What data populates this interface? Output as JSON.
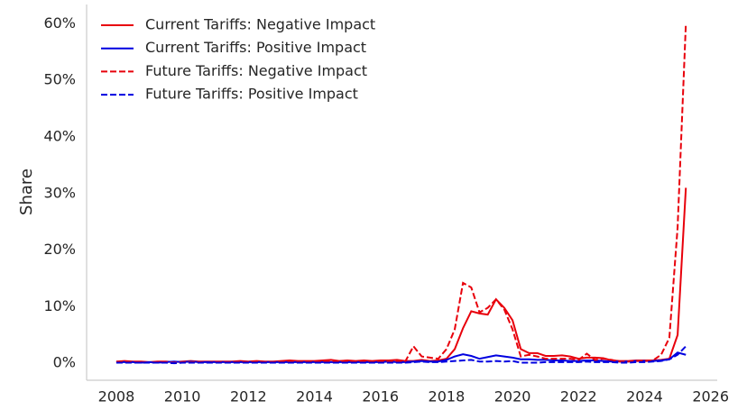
{
  "chart_data": {
    "type": "line",
    "ylabel": "Share",
    "x": [
      2008,
      2008.25,
      2008.5,
      2008.75,
      2009,
      2009.25,
      2009.5,
      2009.75,
      2010,
      2010.25,
      2010.5,
      2010.75,
      2011,
      2011.25,
      2011.5,
      2011.75,
      2012,
      2012.25,
      2012.5,
      2012.75,
      2013,
      2013.25,
      2013.5,
      2013.75,
      2014,
      2014.25,
      2014.5,
      2014.75,
      2015,
      2015.25,
      2015.5,
      2015.75,
      2016,
      2016.25,
      2016.5,
      2016.75,
      2017,
      2017.25,
      2017.5,
      2017.75,
      2018,
      2018.25,
      2018.5,
      2018.75,
      2019,
      2019.25,
      2019.5,
      2019.75,
      2020,
      2020.25,
      2020.5,
      2020.75,
      2021,
      2021.25,
      2021.5,
      2021.75,
      2022,
      2022.25,
      2022.5,
      2022.75,
      2023,
      2023.25,
      2023.5,
      2023.75,
      2024,
      2024.25,
      2024.5,
      2024.75,
      2025,
      2025.25
    ],
    "series": [
      {
        "name": "Current Tariffs: Negative Impact",
        "color": "#e8000b",
        "linestyle": "solid",
        "values": [
          0.3,
          0.4,
          0.3,
          0.3,
          0.2,
          0.3,
          0.3,
          0.2,
          0.3,
          0.4,
          0.3,
          0.3,
          0.3,
          0.3,
          0.3,
          0.4,
          0.3,
          0.4,
          0.3,
          0.3,
          0.4,
          0.5,
          0.4,
          0.4,
          0.4,
          0.5,
          0.6,
          0.4,
          0.5,
          0.4,
          0.5,
          0.4,
          0.5,
          0.5,
          0.6,
          0.4,
          0.4,
          0.6,
          0.4,
          0.5,
          0.8,
          2.5,
          6.2,
          9.2,
          8.8,
          8.6,
          11.3,
          9.8,
          7.6,
          2.5,
          1.8,
          1.8,
          1.3,
          1.3,
          1.4,
          1.2,
          0.8,
          1.0,
          1.0,
          0.9,
          0.5,
          0.4,
          0.4,
          0.5,
          0.5,
          0.5,
          0.6,
          0.8,
          5.0,
          31.0
        ]
      },
      {
        "name": "Current Tariffs: Positive Impact",
        "color": "#0000e0",
        "linestyle": "solid",
        "values": [
          0.2,
          0.2,
          0.2,
          0.1,
          0.2,
          0.1,
          0.2,
          0.3,
          0.2,
          0.3,
          0.2,
          0.2,
          0.2,
          0.2,
          0.2,
          0.2,
          0.2,
          0.2,
          0.2,
          0.2,
          0.2,
          0.2,
          0.2,
          0.2,
          0.2,
          0.2,
          0.2,
          0.2,
          0.2,
          0.2,
          0.2,
          0.2,
          0.2,
          0.3,
          0.2,
          0.2,
          0.3,
          0.4,
          0.3,
          0.3,
          0.6,
          1.2,
          1.6,
          1.3,
          0.8,
          1.1,
          1.4,
          1.2,
          1.0,
          0.7,
          0.7,
          0.6,
          0.6,
          0.5,
          0.5,
          0.4,
          0.4,
          0.5,
          0.5,
          0.4,
          0.3,
          0.3,
          0.3,
          0.4,
          0.4,
          0.4,
          0.5,
          0.7,
          1.9,
          1.5
        ]
      },
      {
        "name": "Future Tariffs: Negative Impact",
        "color": "#e8000b",
        "linestyle": "dashed",
        "values": [
          0.2,
          0.3,
          0.2,
          0.2,
          0.1,
          0.2,
          0.2,
          0.1,
          0.2,
          0.2,
          0.2,
          0.1,
          0.2,
          0.2,
          0.2,
          0.2,
          0.2,
          0.3,
          0.2,
          0.2,
          0.3,
          0.3,
          0.2,
          0.3,
          0.3,
          0.3,
          0.4,
          0.3,
          0.3,
          0.3,
          0.4,
          0.3,
          0.3,
          0.3,
          0.4,
          0.3,
          3.0,
          1.2,
          1.0,
          0.8,
          2.5,
          6.0,
          14.2,
          13.4,
          9.0,
          9.8,
          11.3,
          9.5,
          6.0,
          1.2,
          1.5,
          1.2,
          0.8,
          0.8,
          0.8,
          0.8,
          0.6,
          1.7,
          0.6,
          0.8,
          0.6,
          0.3,
          0.3,
          0.4,
          0.4,
          0.5,
          1.5,
          4.5,
          24.0,
          60.0
        ]
      },
      {
        "name": "Future Tariffs: Positive Impact",
        "color": "#0000e0",
        "linestyle": "dashed",
        "values": [
          0.1,
          0.1,
          0.1,
          0.1,
          0.1,
          0.1,
          0.1,
          0.0,
          0.1,
          0.1,
          0.1,
          0.1,
          0.1,
          0.1,
          0.1,
          0.1,
          0.1,
          0.1,
          0.1,
          0.1,
          0.1,
          0.1,
          0.1,
          0.1,
          0.1,
          0.1,
          0.1,
          0.1,
          0.1,
          0.1,
          0.1,
          0.1,
          0.1,
          0.1,
          0.1,
          0.1,
          0.2,
          0.3,
          0.2,
          0.2,
          0.3,
          0.4,
          0.5,
          0.6,
          0.3,
          0.3,
          0.4,
          0.3,
          0.4,
          0.1,
          0.1,
          0.1,
          0.2,
          0.2,
          0.2,
          0.2,
          0.2,
          0.3,
          0.2,
          0.2,
          0.2,
          0.1,
          0.1,
          0.2,
          0.2,
          0.3,
          0.4,
          0.7,
          1.5,
          3.0
        ]
      }
    ],
    "xlim": [
      2007.1,
      2026.2
    ],
    "xticks": [
      2008,
      2010,
      2012,
      2014,
      2016,
      2018,
      2020,
      2022,
      2024,
      2026
    ],
    "ylim": [
      -3,
      63.4
    ],
    "yticks": [
      {
        "value": 0,
        "label": "0%"
      },
      {
        "value": 10,
        "label": "10%"
      },
      {
        "value": 20,
        "label": "20%"
      },
      {
        "value": 30,
        "label": "30%"
      },
      {
        "value": 40,
        "label": "40%"
      },
      {
        "value": 50,
        "label": "50%"
      },
      {
        "value": 60,
        "label": "60%"
      }
    ],
    "grid": false,
    "legend": "upper left"
  }
}
